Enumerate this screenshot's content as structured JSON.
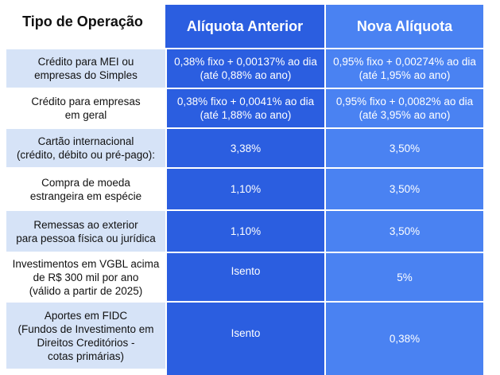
{
  "header": {
    "operation": "Tipo de Operação",
    "previous_rate": "Alíquota Anterior",
    "new_rate": "Nova Alíquota"
  },
  "rows": [
    {
      "operation": "Crédito para MEI ou\nempresas do Simples",
      "previous": "0,38% fixo + 0,00137% ao dia\n(até 0,88% ao ano)",
      "new": "0,95% fixo + 0,00274% ao dia\n(até 1,95% ao ano)"
    },
    {
      "operation": "Crédito para empresas\nem geral",
      "previous": "0,38% fixo + 0,0041% ao dia\n(até 1,88% ao ano)",
      "new": "0,95% fixo + 0,0082% ao dia\n(até 3,95% ao ano)"
    },
    {
      "operation": "Cartão internacional\n(crédito, débito ou pré-pago):",
      "previous": "3,38%",
      "new": "3,50%"
    },
    {
      "operation": "Compra de moeda\nestrangeira em espécie",
      "previous": "1,10%",
      "new": "3,50%"
    },
    {
      "operation": "Remessas ao exterior\npara pessoa física ou jurídica",
      "previous": "1,10%",
      "new": "3,50%"
    },
    {
      "operation": "Investimentos em VGBL acima\nde R$ 300 mil por ano\n(válido a partir de 2025)",
      "previous": "Isento",
      "new": "5%"
    },
    {
      "operation": "Aportes em FIDC\n(Fundos de Investimento em\nDireitos Creditórios -\ncotas primárias)",
      "previous": "Isento",
      "new": "0,38%"
    }
  ],
  "colors": {
    "previous_column": "#2b5ee0",
    "new_column": "#4a82f2",
    "shaded_row": "#d6e3f7"
  }
}
